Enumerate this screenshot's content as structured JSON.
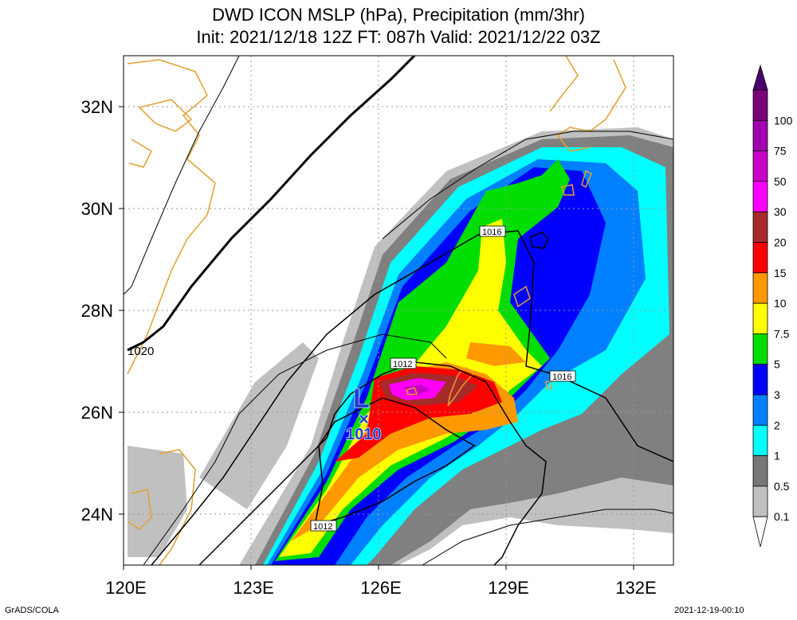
{
  "title": {
    "line1": "DWD ICON MSLP (hPa), Precipitation (mm/3hr)",
    "line2": "Init: 2021/12/18 12Z  FT: 087h  Valid: 2021/12/22 03Z"
  },
  "axes": {
    "x_ticks": [
      "120E",
      "123E",
      "126E",
      "129E",
      "132E"
    ],
    "y_ticks": [
      "32N",
      "30N",
      "28N",
      "26N",
      "24N"
    ]
  },
  "isobar_labels": [
    "1020",
    "1016",
    "1012",
    "1016",
    "1012"
  ],
  "low_center": {
    "symbol": "L",
    "marker": "×",
    "pressure": "1010"
  },
  "colorbar": {
    "labels": [
      "100",
      "75",
      "50",
      "30",
      "20",
      "15",
      "10",
      "7.5",
      "5",
      "3",
      "2",
      "1",
      "0.5",
      "0.1"
    ],
    "colors": [
      "#7a007a",
      "#a000b0",
      "#c800c8",
      "#ff00ff",
      "#a52a2a",
      "#ff0000",
      "#ff9900",
      "#ffff00",
      "#00dd00",
      "#0000ff",
      "#0080ff",
      "#00ffff",
      "#777777",
      "#c0c0c0",
      "#ffffff"
    ],
    "top_arrow_color": "#4b0070"
  },
  "colors": {
    "coastline": "#e0a030",
    "grid": "#999999"
  },
  "footer": {
    "left": "GrADS/COLA",
    "right": "2021-12-19-00:10"
  }
}
